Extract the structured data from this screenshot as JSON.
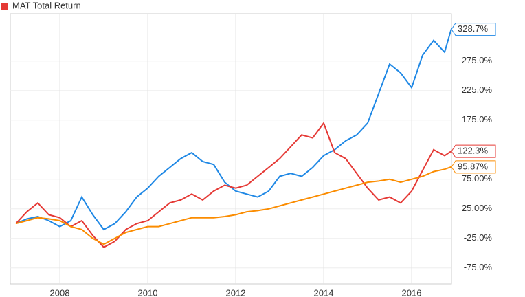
{
  "chart_data": {
    "type": "line",
    "x": [
      2007,
      2007.25,
      2007.5,
      2007.75,
      2008,
      2008.25,
      2008.5,
      2008.75,
      2009,
      2009.25,
      2009.5,
      2009.75,
      2010,
      2010.25,
      2010.5,
      2010.75,
      2011,
      2011.25,
      2011.5,
      2011.75,
      2012,
      2012.25,
      2012.5,
      2012.75,
      2013,
      2013.25,
      2013.5,
      2013.75,
      2014,
      2014.25,
      2014.5,
      2014.75,
      2015,
      2015.25,
      2015.5,
      2015.75,
      2016,
      2016.25,
      2016.5,
      2016.75,
      2016.9
    ],
    "series": [
      {
        "color": "#1f88e5",
        "values": [
          0,
          8,
          12,
          5,
          -5,
          5,
          45,
          15,
          -10,
          0,
          20,
          45,
          60,
          80,
          95,
          110,
          120,
          105,
          100,
          70,
          55,
          50,
          45,
          55,
          80,
          85,
          80,
          95,
          115,
          125,
          140,
          150,
          170,
          220,
          270,
          255,
          230,
          285,
          310,
          290,
          328.7
        ],
        "value_labels": [
          null,
          null,
          null,
          null,
          null,
          null,
          null,
          null,
          null,
          null,
          null,
          null,
          null,
          null,
          null,
          null,
          null,
          null,
          null,
          null,
          null,
          null,
          null,
          null,
          null,
          null,
          null,
          null,
          null,
          null,
          null,
          null,
          null,
          null,
          null,
          null,
          null,
          null,
          null,
          null,
          "328.7%"
        ]
      },
      {
        "name": "MAT Total Return",
        "color": "#e53935",
        "values": [
          0,
          20,
          35,
          15,
          10,
          -5,
          5,
          -20,
          -40,
          -30,
          -10,
          0,
          5,
          20,
          35,
          40,
          50,
          40,
          55,
          65,
          60,
          65,
          80,
          95,
          110,
          130,
          150,
          145,
          170,
          120,
          110,
          85,
          60,
          40,
          45,
          35,
          55,
          90,
          125,
          115,
          122.3
        ],
        "value_labels": [
          null,
          null,
          null,
          null,
          null,
          null,
          null,
          null,
          null,
          null,
          null,
          null,
          null,
          null,
          null,
          null,
          null,
          null,
          null,
          null,
          null,
          null,
          null,
          null,
          null,
          null,
          null,
          null,
          null,
          null,
          null,
          null,
          null,
          null,
          null,
          null,
          null,
          null,
          null,
          null,
          "122.3%"
        ]
      },
      {
        "color": "#fb8c00",
        "values": [
          0,
          5,
          10,
          8,
          5,
          -5,
          -10,
          -25,
          -35,
          -25,
          -15,
          -10,
          -5,
          -5,
          0,
          5,
          10,
          10,
          10,
          12,
          15,
          20,
          22,
          25,
          30,
          35,
          40,
          45,
          50,
          55,
          60,
          65,
          70,
          72,
          75,
          70,
          75,
          80,
          88,
          92,
          95.87
        ],
        "value_labels": [
          null,
          null,
          null,
          null,
          null,
          null,
          null,
          null,
          null,
          null,
          null,
          null,
          null,
          null,
          null,
          null,
          null,
          null,
          null,
          null,
          null,
          null,
          null,
          null,
          null,
          null,
          null,
          null,
          null,
          null,
          null,
          null,
          null,
          null,
          null,
          null,
          null,
          null,
          null,
          null,
          "95.87%"
        ]
      }
    ],
    "xlim": [
      2006.875,
      2016.906
    ],
    "xticks": [
      2008,
      2010,
      2012,
      2014,
      2016
    ],
    "ylim": [
      -102,
      355
    ],
    "yticks": [
      {
        "value": -75,
        "label": "-75.0%"
      },
      {
        "value": -25,
        "label": "-25.0%"
      },
      {
        "value": 25,
        "label": "25.00%"
      },
      {
        "value": 75,
        "label": "75.00%"
      },
      {
        "value": 175,
        "label": "175.0%"
      },
      {
        "value": 225,
        "label": "225.0%"
      },
      {
        "value": 275,
        "label": "275.0%"
      }
    ],
    "grid": true
  }
}
